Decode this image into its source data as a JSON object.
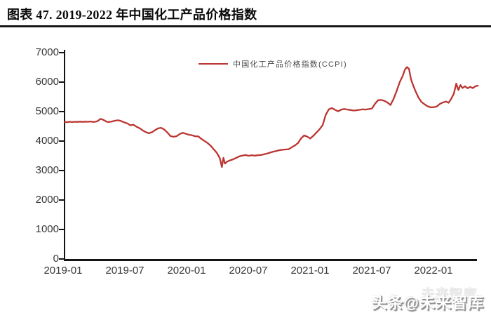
{
  "page": {
    "title": "图表 47. 2019-2022 年中国化工产品价格指数",
    "watermark": {
      "main": "头条@未来智库",
      "ghost": "未来智库"
    }
  },
  "chart_data": {
    "type": "line",
    "title": "图表 47. 2019-2022 年中国化工产品价格指数",
    "grid": false,
    "legend": {
      "position": "top-center",
      "entries": [
        {
          "label": "中国化工产品价格指数(CCPI)",
          "color": "#bb3531"
        }
      ]
    },
    "ylim": [
      0,
      7000
    ],
    "yticks": [
      0,
      1000,
      2000,
      3000,
      4000,
      5000,
      6000,
      7000
    ],
    "xticks": [
      "2019-01",
      "2019-07",
      "2020-01",
      "2020-07",
      "2021-01",
      "2021-07",
      "2022-01"
    ],
    "x_unit": "months since 2019-01 (data extends to about 2022-05)",
    "series": [
      {
        "name": "中国化工产品价格指数(CCPI)",
        "color": "#bb3531",
        "points": [
          [
            0,
            4650
          ],
          [
            0.25,
            4640
          ],
          [
            0.5,
            4655
          ],
          [
            0.75,
            4645
          ],
          [
            1,
            4655
          ],
          [
            1.25,
            4650
          ],
          [
            1.5,
            4660
          ],
          [
            1.75,
            4650
          ],
          [
            2,
            4660
          ],
          [
            2.25,
            4655
          ],
          [
            2.5,
            4665
          ],
          [
            2.75,
            4650
          ],
          [
            3,
            4655
          ],
          [
            3.25,
            4680
          ],
          [
            3.5,
            4755
          ],
          [
            3.7,
            4730
          ],
          [
            3.9,
            4695
          ],
          [
            4.1,
            4655
          ],
          [
            4.3,
            4645
          ],
          [
            4.6,
            4665
          ],
          [
            4.9,
            4690
          ],
          [
            5.2,
            4705
          ],
          [
            5.5,
            4680
          ],
          [
            5.8,
            4635
          ],
          [
            6.1,
            4600
          ],
          [
            6.4,
            4535
          ],
          [
            6.7,
            4555
          ],
          [
            7,
            4485
          ],
          [
            7.3,
            4435
          ],
          [
            7.6,
            4365
          ],
          [
            7.9,
            4305
          ],
          [
            8.2,
            4265
          ],
          [
            8.5,
            4300
          ],
          [
            8.8,
            4370
          ],
          [
            9.1,
            4430
          ],
          [
            9.4,
            4450
          ],
          [
            9.7,
            4390
          ],
          [
            10,
            4290
          ],
          [
            10.3,
            4170
          ],
          [
            10.6,
            4145
          ],
          [
            10.9,
            4165
          ],
          [
            11.2,
            4240
          ],
          [
            11.5,
            4280
          ],
          [
            11.8,
            4245
          ],
          [
            12.1,
            4215
          ],
          [
            12.4,
            4195
          ],
          [
            12.7,
            4165
          ],
          [
            13,
            4160
          ],
          [
            13.3,
            4075
          ],
          [
            13.6,
            4005
          ],
          [
            13.9,
            3935
          ],
          [
            14.2,
            3845
          ],
          [
            14.5,
            3725
          ],
          [
            14.8,
            3605
          ],
          [
            15.1,
            3420
          ],
          [
            15.3,
            3120
          ],
          [
            15.45,
            3430
          ],
          [
            15.6,
            3235
          ],
          [
            15.8,
            3300
          ],
          [
            16.1,
            3345
          ],
          [
            16.4,
            3380
          ],
          [
            16.7,
            3430
          ],
          [
            17,
            3480
          ],
          [
            17.3,
            3505
          ],
          [
            17.6,
            3525
          ],
          [
            17.9,
            3500
          ],
          [
            18.2,
            3520
          ],
          [
            18.5,
            3505
          ],
          [
            18.8,
            3520
          ],
          [
            19.1,
            3525
          ],
          [
            19.4,
            3550
          ],
          [
            19.7,
            3575
          ],
          [
            20,
            3610
          ],
          [
            20.3,
            3640
          ],
          [
            20.6,
            3665
          ],
          [
            20.9,
            3690
          ],
          [
            21.2,
            3705
          ],
          [
            21.5,
            3715
          ],
          [
            21.8,
            3725
          ],
          [
            22.1,
            3790
          ],
          [
            22.4,
            3850
          ],
          [
            22.7,
            3930
          ],
          [
            23,
            4090
          ],
          [
            23.3,
            4190
          ],
          [
            23.6,
            4150
          ],
          [
            23.9,
            4085
          ],
          [
            24.2,
            4180
          ],
          [
            24.5,
            4290
          ],
          [
            24.8,
            4400
          ],
          [
            25.1,
            4540
          ],
          [
            25.4,
            4890
          ],
          [
            25.7,
            5075
          ],
          [
            26,
            5120
          ],
          [
            26.3,
            5060
          ],
          [
            26.6,
            5010
          ],
          [
            26.9,
            5065
          ],
          [
            27.2,
            5090
          ],
          [
            27.5,
            5070
          ],
          [
            27.8,
            5055
          ],
          [
            28.1,
            5035
          ],
          [
            28.4,
            5045
          ],
          [
            28.7,
            5060
          ],
          [
            29,
            5075
          ],
          [
            29.3,
            5070
          ],
          [
            29.6,
            5085
          ],
          [
            29.9,
            5105
          ],
          [
            30.2,
            5270
          ],
          [
            30.5,
            5385
          ],
          [
            30.8,
            5395
          ],
          [
            31.1,
            5365
          ],
          [
            31.4,
            5310
          ],
          [
            31.7,
            5225
          ],
          [
            32,
            5430
          ],
          [
            32.3,
            5700
          ],
          [
            32.6,
            6000
          ],
          [
            32.9,
            6220
          ],
          [
            33.1,
            6420
          ],
          [
            33.3,
            6510
          ],
          [
            33.5,
            6450
          ],
          [
            33.7,
            6090
          ],
          [
            33.9,
            5890
          ],
          [
            34.1,
            5720
          ],
          [
            34.4,
            5490
          ],
          [
            34.7,
            5330
          ],
          [
            35,
            5250
          ],
          [
            35.3,
            5180
          ],
          [
            35.6,
            5145
          ],
          [
            35.9,
            5150
          ],
          [
            36.2,
            5175
          ],
          [
            36.5,
            5260
          ],
          [
            36.8,
            5310
          ],
          [
            37.1,
            5340
          ],
          [
            37.35,
            5300
          ],
          [
            37.6,
            5430
          ],
          [
            37.85,
            5600
          ],
          [
            38.1,
            5950
          ],
          [
            38.3,
            5730
          ],
          [
            38.5,
            5900
          ],
          [
            38.7,
            5800
          ],
          [
            38.95,
            5860
          ],
          [
            39.2,
            5790
          ],
          [
            39.45,
            5840
          ],
          [
            39.7,
            5795
          ],
          [
            39.95,
            5860
          ],
          [
            40.2,
            5880
          ]
        ]
      }
    ]
  }
}
